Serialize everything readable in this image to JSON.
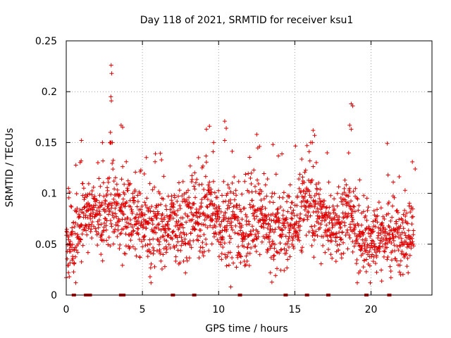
{
  "chart_data": {
    "type": "scatter",
    "title": "Day 118 of 2021, SRMTID for receiver ksu1",
    "xlabel": "GPS time / hours",
    "ylabel": "SRMTID / TECUs",
    "xlim": [
      0,
      24
    ],
    "ylim": [
      0,
      0.25
    ],
    "xticks": [
      0,
      5,
      10,
      15,
      20
    ],
    "xtick_labels": [
      "0",
      "5",
      "10",
      "15",
      "20"
    ],
    "yticks": [
      0,
      0.05,
      0.1,
      0.15,
      0.2,
      0.25
    ],
    "ytick_labels": [
      "0",
      "0.05",
      "0.1",
      "0.15",
      "0.2",
      "0.25"
    ],
    "grid": true,
    "marker": "+",
    "color": "#e00000",
    "series": [
      {
        "name": "SRMTID",
        "profile": [
          [
            0.0,
            0.055
          ],
          [
            0.5,
            0.05
          ],
          [
            1.0,
            0.08
          ],
          [
            1.5,
            0.085
          ],
          [
            2.0,
            0.075
          ],
          [
            2.5,
            0.07
          ],
          [
            3.0,
            0.09
          ],
          [
            3.5,
            0.075
          ],
          [
            4.0,
            0.08
          ],
          [
            4.5,
            0.075
          ],
          [
            5.0,
            0.07
          ],
          [
            5.5,
            0.06
          ],
          [
            6.0,
            0.07
          ],
          [
            6.5,
            0.065
          ],
          [
            7.0,
            0.07
          ],
          [
            7.5,
            0.075
          ],
          [
            8.0,
            0.065
          ],
          [
            8.5,
            0.08
          ],
          [
            9.0,
            0.075
          ],
          [
            9.5,
            0.085
          ],
          [
            10.0,
            0.07
          ],
          [
            10.5,
            0.065
          ],
          [
            11.0,
            0.08
          ],
          [
            11.5,
            0.06
          ],
          [
            12.0,
            0.07
          ],
          [
            12.5,
            0.075
          ],
          [
            13.0,
            0.07
          ],
          [
            13.5,
            0.06
          ],
          [
            14.0,
            0.065
          ],
          [
            14.5,
            0.06
          ],
          [
            15.0,
            0.07
          ],
          [
            15.5,
            0.085
          ],
          [
            16.0,
            0.09
          ],
          [
            16.5,
            0.08
          ],
          [
            17.0,
            0.075
          ],
          [
            17.5,
            0.07
          ],
          [
            18.0,
            0.07
          ],
          [
            18.5,
            0.08
          ],
          [
            19.0,
            0.065
          ],
          [
            19.5,
            0.06
          ],
          [
            20.0,
            0.055
          ],
          [
            20.5,
            0.06
          ],
          [
            21.0,
            0.06
          ],
          [
            21.5,
            0.055
          ],
          [
            22.0,
            0.06
          ],
          [
            22.5,
            0.065
          ]
        ],
        "outliers": [
          [
            2.95,
            0.226
          ],
          [
            2.98,
            0.218
          ],
          [
            2.93,
            0.195
          ],
          [
            2.96,
            0.191
          ],
          [
            3.6,
            0.167
          ],
          [
            3.7,
            0.165
          ],
          [
            2.9,
            0.16
          ],
          [
            1.0,
            0.152
          ],
          [
            9.4,
            0.166
          ],
          [
            9.2,
            0.163
          ],
          [
            10.4,
            0.171
          ],
          [
            10.5,
            0.164
          ],
          [
            12.5,
            0.158
          ],
          [
            10.4,
            0.152
          ],
          [
            16.2,
            0.162
          ],
          [
            16.3,
            0.157
          ],
          [
            18.7,
            0.188
          ],
          [
            18.8,
            0.186
          ],
          [
            18.6,
            0.167
          ],
          [
            18.7,
            0.163
          ],
          [
            15.8,
            0.147
          ],
          [
            10.8,
            0.008
          ],
          [
            0.15,
            0.022
          ],
          [
            0.2,
            0.018
          ],
          [
            5.5,
            0.018
          ],
          [
            13.4,
            0.022
          ],
          [
            19.7,
            0.035
          ],
          [
            22.9,
            0.124
          ]
        ],
        "zero_gaps": [
          0.5,
          1.3,
          1.55,
          3.6,
          3.75,
          7.0,
          8.4,
          11.4,
          14.4,
          15.8,
          17.2,
          19.7,
          21.2
        ]
      }
    ]
  }
}
